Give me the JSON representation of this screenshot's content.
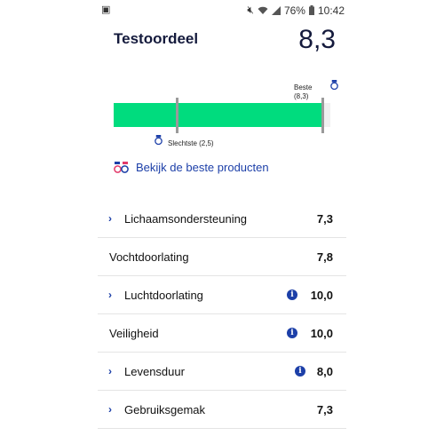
{
  "status_bar": {
    "left_icon": "app-notification-icon",
    "battery_percent": "76%",
    "time": "10:42",
    "icons": [
      "mute-icon",
      "wifi-icon",
      "signal-icon",
      "battery-icon"
    ]
  },
  "header": {
    "title": "Testoordeel",
    "score": "8,3"
  },
  "score_chart": {
    "best_label": "Beste",
    "best_value": "(8,3)",
    "worst_label": "Slechtste (2,5)",
    "worst_score": 2.5,
    "best_score": 8.3,
    "scale_max": 8.6,
    "fill_color": "#00dc7e",
    "track_color": "#f0f0f0"
  },
  "link": {
    "label": "Bekijk de beste producten",
    "icon": "best-products-icon"
  },
  "criteria": [
    {
      "label": "Lichaamsondersteuning",
      "value": "7,3",
      "expandable": true,
      "info": false
    },
    {
      "label": "Vochtdoorlating",
      "value": "7,8",
      "expandable": false,
      "info": false
    },
    {
      "label": "Luchtdoorlating",
      "value": "10,0",
      "expandable": true,
      "info": true
    },
    {
      "label": "Veiligheid",
      "value": "10,0",
      "expandable": false,
      "info": true
    },
    {
      "label": "Levensduur",
      "value": "8,0",
      "expandable": true,
      "info": true
    },
    {
      "label": "Gebruiksgemak",
      "value": "7,3",
      "expandable": true,
      "info": false
    }
  ],
  "colors": {
    "accent": "#1c3fa8",
    "navy_text": "#141a3c",
    "divider": "#e4e4e4"
  }
}
